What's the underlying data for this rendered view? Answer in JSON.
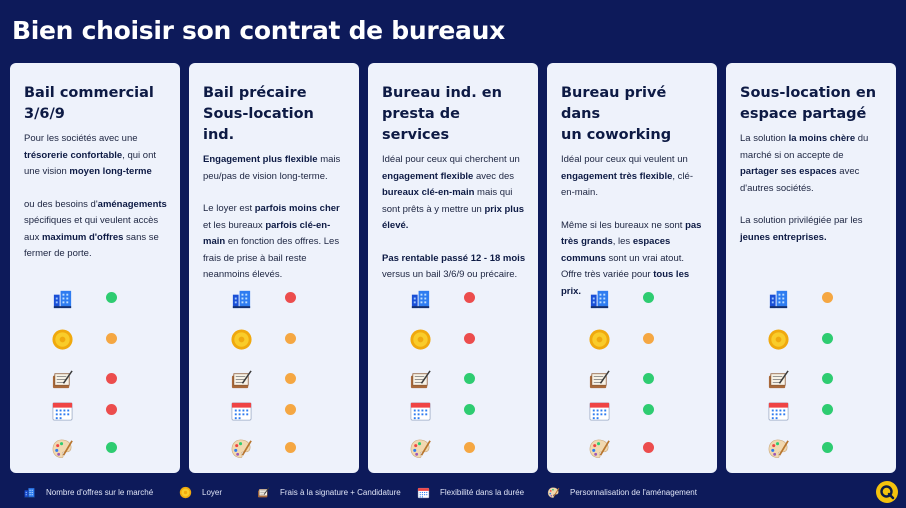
{
  "title": "Bien choisir son contrat de bureaux",
  "status_colors": {
    "green": "#2ecc71",
    "orange": "#f5a742",
    "red": "#ec4d4d"
  },
  "cards": [
    {
      "title": "Bail commercial\n3/6/9",
      "paragraphs": [
        [
          {
            "t": "Pour les sociétés avec une "
          },
          {
            "t": "trésorerie confortable",
            "b": true
          },
          {
            "t": ", qui ont une vision "
          },
          {
            "t": "moyen long-terme",
            "b": true
          }
        ],
        [
          {
            "t": "ou des besoins d'"
          },
          {
            "t": "aménagements",
            "b": true
          },
          {
            "t": " spécifiques et qui veulent accès aux "
          },
          {
            "t": "maximum d'offres",
            "b": true
          },
          {
            "t": " sans se fermer de porte."
          }
        ]
      ],
      "ratings": [
        "green",
        "orange",
        "red",
        "red",
        "green"
      ]
    },
    {
      "title": "Bail précaire\nSous-location ind.",
      "paragraphs": [
        [
          {
            "t": "Engagement plus flexible",
            "b": true
          },
          {
            "t": " mais peu/pas de vision long-terme."
          }
        ],
        [
          {
            "t": "Le loyer est "
          },
          {
            "t": "parfois moins cher",
            "b": true
          },
          {
            "t": " et les bureaux "
          },
          {
            "t": "parfois clé-en-main",
            "b": true
          },
          {
            "t": " en fonction des offres. Les frais de prise à bail reste neanmoins élevés."
          }
        ]
      ],
      "ratings": [
        "red",
        "orange",
        "orange",
        "orange",
        "orange"
      ]
    },
    {
      "title": "Bureau ind. en\npresta de services",
      "paragraphs": [
        [
          {
            "t": "Idéal pour ceux qui cherchent un "
          },
          {
            "t": "engagement flexible",
            "b": true
          },
          {
            "t": " avec des "
          },
          {
            "t": "bureaux clé-en-main",
            "b": true
          },
          {
            "t": " mais qui sont prêts à y mettre un  "
          },
          {
            "t": "prix plus élevé.",
            "b": true
          }
        ],
        [
          {
            "t": "Pas rentable passé 12 - 18 mois",
            "b": true
          },
          {
            "t": " versus un bail 3/6/9 ou précaire."
          }
        ]
      ],
      "ratings": [
        "red",
        "red",
        "green",
        "green",
        "orange"
      ]
    },
    {
      "title": "Bureau privé dans\nun coworking",
      "paragraphs": [
        [
          {
            "t": "Idéal pour ceux qui veulent un "
          },
          {
            "t": "engagement très flexible",
            "b": true
          },
          {
            "t": ", clé-en-main."
          }
        ],
        [
          {
            "t": "Même si les bureaux ne sont "
          },
          {
            "t": "pas très grands",
            "b": true
          },
          {
            "t": ", les "
          },
          {
            "t": "espaces communs",
            "b": true
          },
          {
            "t": " sont un vrai atout. Offre très variée pour "
          },
          {
            "t": "tous les prix.",
            "b": true
          }
        ]
      ],
      "ratings": [
        "green",
        "orange",
        "green",
        "green",
        "red"
      ]
    },
    {
      "title": "Sous-location en\nespace partagé",
      "paragraphs": [
        [
          {
            "t": "La solution "
          },
          {
            "t": "la moins chère",
            "b": true
          },
          {
            "t": " du marché si on accepte de "
          },
          {
            "t": "partager ses espaces",
            "b": true
          },
          {
            "t": " avec d'autres sociétés."
          }
        ],
        [
          {
            "t": "La solution privilégiée par les "
          },
          {
            "t": "jeunes entreprises.",
            "b": true
          }
        ]
      ],
      "ratings": [
        "orange",
        "green",
        "green",
        "green",
        "green"
      ]
    }
  ],
  "legend": [
    {
      "icon": "building-icon",
      "label": "Nombre d'offres sur le marché"
    },
    {
      "icon": "coin-icon",
      "label": "Loyer"
    },
    {
      "icon": "contract-icon",
      "label": "Frais à la signature + Candidature"
    },
    {
      "icon": "calendar-icon",
      "label": "Flexibilité dans la durée"
    },
    {
      "icon": "palette-icon",
      "label": "Personnalisation de l'aménagement"
    }
  ]
}
